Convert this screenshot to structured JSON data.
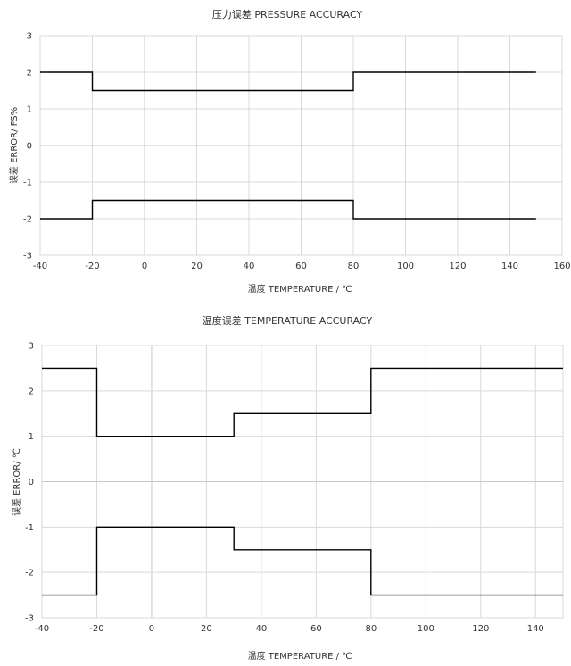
{
  "chart_data": [
    {
      "type": "line",
      "title": "压力误差 PRESSURE ACCURACY",
      "xlabel": "温度 TEMPERATURE / ℃",
      "ylabel": "误差 ERROR/ FS%",
      "xlim": [
        -40,
        160
      ],
      "ylim": [
        -3,
        3
      ],
      "xticks": [
        -40,
        -20,
        0,
        20,
        40,
        60,
        80,
        100,
        120,
        140,
        160
      ],
      "yticks": [
        -3,
        -2,
        -1,
        0,
        1,
        2,
        3
      ],
      "grid": true,
      "series": [
        {
          "x": [
            -40,
            -20,
            -20,
            80,
            80,
            150
          ],
          "y": [
            2,
            2,
            1.5,
            1.5,
            2,
            2
          ]
        },
        {
          "x": [
            -40,
            -20,
            -20,
            80,
            80,
            150
          ],
          "y": [
            -2,
            -2,
            -1.5,
            -1.5,
            -2,
            -2
          ]
        }
      ]
    },
    {
      "type": "line",
      "title": "温度误差 TEMPERATURE ACCURACY",
      "xlabel": "温度 TEMPERATURE / ℃",
      "ylabel": "误差 ERROR/ ℃",
      "xlim": [
        -40,
        150
      ],
      "ylim": [
        -3,
        3
      ],
      "xticks": [
        -40,
        -20,
        0,
        20,
        40,
        60,
        80,
        100,
        120,
        140
      ],
      "yticks": [
        -3,
        -2,
        -1,
        0,
        1,
        2,
        3
      ],
      "grid": true,
      "series": [
        {
          "x": [
            -40,
            -20,
            -20,
            30,
            30,
            80,
            80,
            150
          ],
          "y": [
            2.5,
            2.5,
            1,
            1,
            1.5,
            1.5,
            2.5,
            2.5
          ]
        },
        {
          "x": [
            -40,
            -20,
            -20,
            30,
            30,
            80,
            80,
            150
          ],
          "y": [
            -2.5,
            -2.5,
            -1,
            -1,
            -1.5,
            -1.5,
            -2.5,
            -2.5
          ]
        }
      ]
    }
  ]
}
